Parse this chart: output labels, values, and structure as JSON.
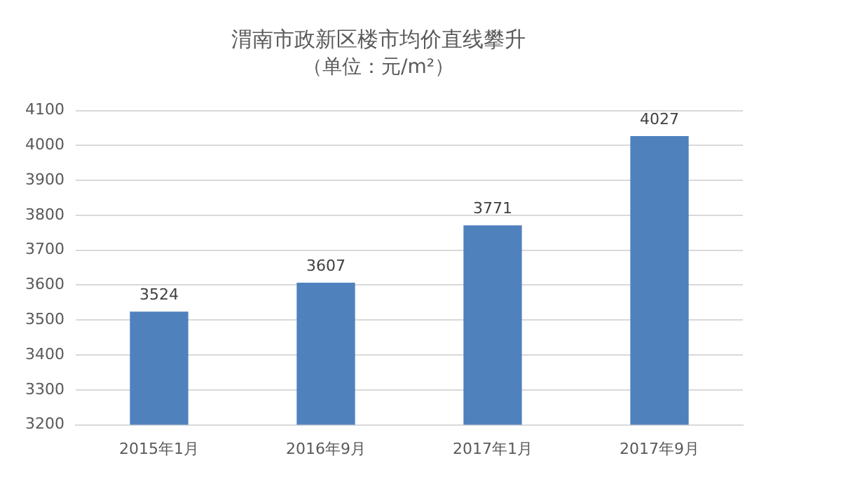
{
  "chart_data": {
    "type": "bar",
    "title": "渭南市政新区楼市均价直线攀升",
    "subtitle": "（单位：元/m²）",
    "categories": [
      "2015年1月",
      "2016年9月",
      "2017年1月",
      "2017年9月"
    ],
    "values": [
      3524,
      3607,
      3771,
      4027
    ],
    "color": "#4f81bd",
    "ylim": [
      3200,
      4100
    ],
    "yticks": [
      3200,
      3300,
      3400,
      3500,
      3600,
      3700,
      3800,
      3900,
      4000,
      4100
    ],
    "grid": "y",
    "data_labels": true
  }
}
